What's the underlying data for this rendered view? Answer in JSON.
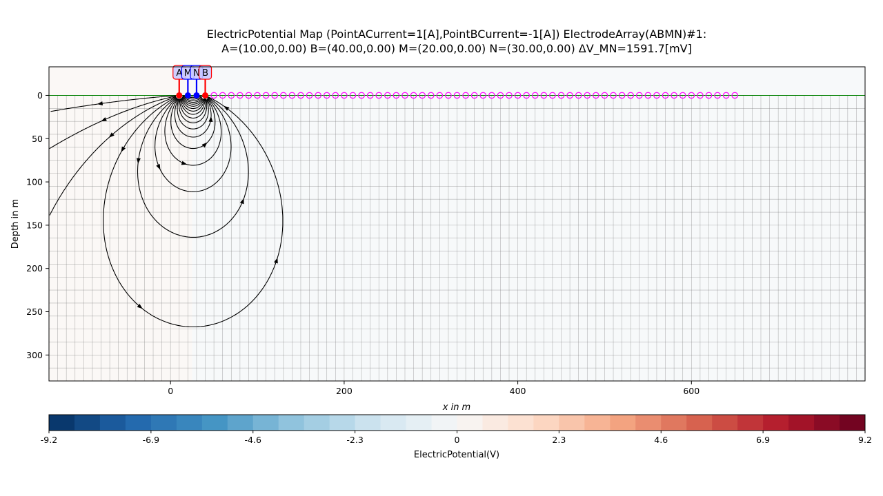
{
  "chart_data": {
    "type": "heatmap",
    "title_lines": [
      "ElectricPotential Map (PointACurrent=1[A],PointBCurrent=-1[A]) ElectrodeArray(ABMN)#1:",
      "A=(10.00,0.00) B=(40.00,0.00) M=(20.00,0.00) N=(30.00,0.00) ΔV_MN=1591.7[mV]"
    ],
    "xlabel": "x in m",
    "ylabel": "Depth in m",
    "xlim": [
      -140,
      800
    ],
    "ylim": [
      330,
      -33
    ],
    "x_ticks": [
      0,
      200,
      400,
      600
    ],
    "y_ticks": [
      0,
      50,
      100,
      150,
      200,
      250,
      300
    ],
    "colorbar": {
      "label": "ElectricPotential(V)",
      "vmin": -9.2,
      "vmax": 9.2,
      "ticks": [
        -9.2,
        -6.9,
        -4.6,
        -2.3,
        0,
        2.3,
        4.6,
        6.9,
        9.2
      ],
      "tick_labels": [
        "-9.2",
        "-6.9",
        "-4.6",
        "-2.3",
        "0",
        "2.3",
        "4.6",
        "6.9",
        "9.2"
      ],
      "n_levels": 32,
      "colormap": "RdBu_r"
    },
    "potential_regions": [
      {
        "x_from": -140,
        "x_to": 25,
        "value": 0.3
      },
      {
        "x_from": 25,
        "x_to": 800,
        "value": -0.3
      }
    ],
    "electrodes": [
      {
        "label": "A",
        "x": 10,
        "y": 0,
        "role": "current",
        "color": "#ff0000"
      },
      {
        "label": "M",
        "x": 20,
        "y": 0,
        "role": "potential",
        "color": "#0000ff"
      },
      {
        "label": "N",
        "x": 30,
        "y": 0,
        "role": "potential",
        "color": "#0000ff"
      },
      {
        "label": "B",
        "x": 40,
        "y": 0,
        "role": "current",
        "color": "#ff0000"
      }
    ],
    "sensor_positions": {
      "x_start": 50,
      "x_end": 650,
      "step": 10,
      "y": 0,
      "color": "#ff00ff"
    },
    "current_sources": [
      {
        "x": 10,
        "y": 0,
        "current_A": 1
      },
      {
        "x": 40,
        "y": 0,
        "current_A": -1
      }
    ],
    "mesh": {
      "x_step": 10,
      "y_step": 15
    },
    "surface_line_color": "#008000",
    "streamline_color": "#000000"
  }
}
